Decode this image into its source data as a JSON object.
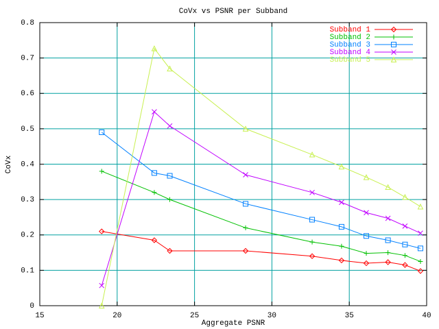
{
  "chart_data": {
    "type": "line",
    "title": "CoVx vs PSNR per Subband",
    "xlabel": "Aggregate PSNR",
    "ylabel": "CoVx",
    "x": [
      19.0,
      22.4,
      23.4,
      28.3,
      32.6,
      34.5,
      36.1,
      37.5,
      38.6,
      39.6
    ],
    "series": [
      {
        "name": "Subband 1",
        "color": "#ff0000",
        "marker": "diamond",
        "values": [
          0.21,
          0.185,
          0.155,
          0.155,
          0.14,
          0.128,
          0.12,
          0.123,
          0.115,
          0.098
        ]
      },
      {
        "name": "Subband 2",
        "color": "#00c000",
        "marker": "plus",
        "values": [
          0.38,
          0.32,
          0.3,
          0.22,
          0.18,
          0.168,
          0.148,
          0.15,
          0.142,
          0.125
        ]
      },
      {
        "name": "Subband 3",
        "color": "#0080ff",
        "marker": "square",
        "values": [
          0.49,
          0.375,
          0.367,
          0.288,
          0.243,
          0.223,
          0.197,
          0.185,
          0.173,
          0.162
        ]
      },
      {
        "name": "Subband 4",
        "color": "#c000ff",
        "marker": "cross",
        "values": [
          0.057,
          0.548,
          0.508,
          0.37,
          0.32,
          0.292,
          0.263,
          0.247,
          0.225,
          0.205
        ]
      },
      {
        "name": "Subband 5",
        "color": "#c8f050",
        "marker": "triangle",
        "values": [
          0.0,
          0.727,
          0.67,
          0.5,
          0.427,
          0.393,
          0.363,
          0.335,
          0.307,
          0.28
        ]
      }
    ],
    "xlim": [
      15,
      40
    ],
    "xticks": [
      15,
      20,
      25,
      30,
      35,
      40
    ],
    "ylim": [
      0,
      0.8
    ],
    "yticks": [
      0,
      0.1,
      0.2,
      0.3,
      0.4,
      0.5,
      0.6,
      0.7,
      0.8
    ],
    "grid": true,
    "legend": "top-right"
  }
}
